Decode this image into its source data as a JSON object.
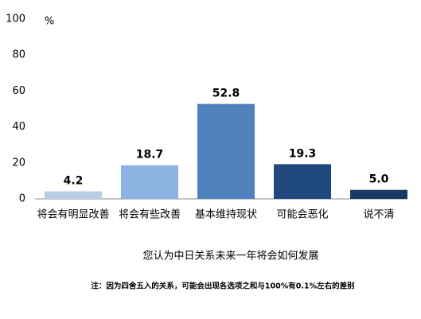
{
  "chart_data": {
    "type": "bar",
    "ylabel": "%",
    "categories": [
      "将会有明显改善",
      "将会有些改善",
      "基本维持现状",
      "可能会恶化",
      "说不清"
    ],
    "values": [
      4.2,
      18.7,
      52.8,
      19.3,
      5.0
    ],
    "value_labels": [
      "4.2",
      "18.7",
      "52.8",
      "19.3",
      "5.0"
    ],
    "colors": [
      "#b9cde5",
      "#8db3e2",
      "#4f81bd",
      "#1f497d",
      "#1a3b66"
    ],
    "ylim": [
      0,
      100
    ],
    "yticks": [
      0,
      20,
      40,
      60,
      80,
      100
    ],
    "xlabel": "您认为中日关系未来一年将会如何发展",
    "note": "注：因为四舍五入的关系，可能会出现各选项之和与100%有0.1%左右的差别"
  }
}
